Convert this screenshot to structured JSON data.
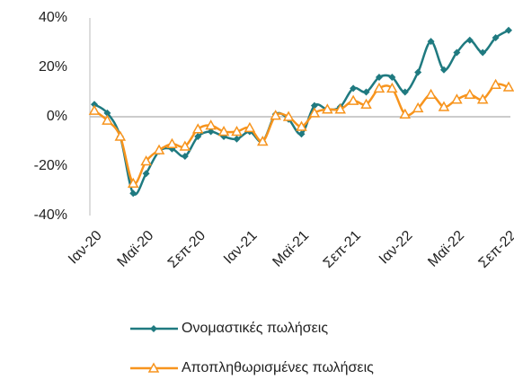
{
  "chart_data": {
    "type": "line",
    "categories": [
      "Ιαν-20",
      null,
      null,
      null,
      "Μαϊ-20",
      null,
      null,
      null,
      "Σεπ-20",
      null,
      null,
      null,
      "Ιαν-21",
      null,
      null,
      null,
      "Μαϊ-21",
      null,
      null,
      null,
      "Σεπ-21",
      null,
      null,
      null,
      "Ιαν-22",
      null,
      null,
      null,
      "Μαϊ-22",
      null,
      null,
      null,
      "Σεπ-22"
    ],
    "series": [
      {
        "name": "Ονομαστικές πωλήσεις",
        "color": "#1f7a80",
        "marker": "diamond",
        "values": [
          5,
          1.5,
          -8,
          -31,
          -23,
          -14,
          -13,
          -16,
          -8,
          -6,
          -8,
          -9,
          -6,
          -10,
          1,
          -1,
          -7,
          4.5,
          3,
          4,
          11.5,
          10,
          16,
          16,
          10,
          18,
          30.5,
          19,
          26,
          31,
          26,
          32,
          35
        ]
      },
      {
        "name": "Αποπληθωρισμένες πωλήσεις",
        "color": "#f7941d",
        "marker": "triangle",
        "values": [
          2.5,
          -1.5,
          -8,
          -27,
          -18,
          -13.5,
          -11,
          -12,
          -5,
          -3.5,
          -6,
          -6,
          -4.5,
          -10,
          0.5,
          0,
          -4,
          1.5,
          3,
          3,
          6.5,
          5,
          11.5,
          11.5,
          1,
          3.5,
          9,
          4,
          7,
          9,
          7,
          13,
          12
        ]
      }
    ],
    "ylim": [
      -40,
      40
    ],
    "yticks": [
      {
        "value": -40,
        "label": "-40%"
      },
      {
        "value": -20,
        "label": "-20%"
      },
      {
        "value": 0,
        "label": "0%"
      },
      {
        "value": 20,
        "label": "20%"
      },
      {
        "value": 40,
        "label": "40%"
      }
    ],
    "grid": false,
    "legend": "bottom"
  }
}
